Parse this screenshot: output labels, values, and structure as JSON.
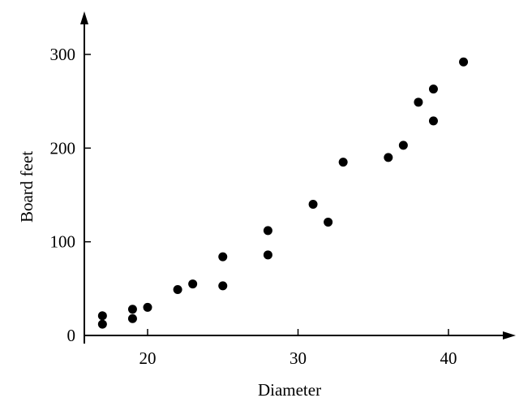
{
  "chart_data": {
    "type": "scatter",
    "title": "",
    "xlabel": "Diameter",
    "ylabel": "Board feet",
    "xlim": [
      16,
      42
    ],
    "ylim": [
      0,
      340
    ],
    "xticks": [
      20,
      30,
      40
    ],
    "yticks": [
      0,
      100,
      200,
      300
    ],
    "x_tick_labels": [
      "20",
      "30",
      "40"
    ],
    "y_tick_labels": [
      "0",
      "100",
      "200",
      "300"
    ],
    "grid": false,
    "legend": "none",
    "marker_color": "#000000",
    "points": [
      {
        "x": 17,
        "y": 12
      },
      {
        "x": 17,
        "y": 21
      },
      {
        "x": 19,
        "y": 18
      },
      {
        "x": 19,
        "y": 28
      },
      {
        "x": 20,
        "y": 30
      },
      {
        "x": 22,
        "y": 49
      },
      {
        "x": 23,
        "y": 55
      },
      {
        "x": 25,
        "y": 53
      },
      {
        "x": 25,
        "y": 84
      },
      {
        "x": 28,
        "y": 86
      },
      {
        "x": 28,
        "y": 112
      },
      {
        "x": 31,
        "y": 140
      },
      {
        "x": 32,
        "y": 121
      },
      {
        "x": 33,
        "y": 185
      },
      {
        "x": 36,
        "y": 190
      },
      {
        "x": 37,
        "y": 203
      },
      {
        "x": 38,
        "y": 249
      },
      {
        "x": 39,
        "y": 263
      },
      {
        "x": 39,
        "y": 229
      },
      {
        "x": 41,
        "y": 292
      }
    ]
  }
}
